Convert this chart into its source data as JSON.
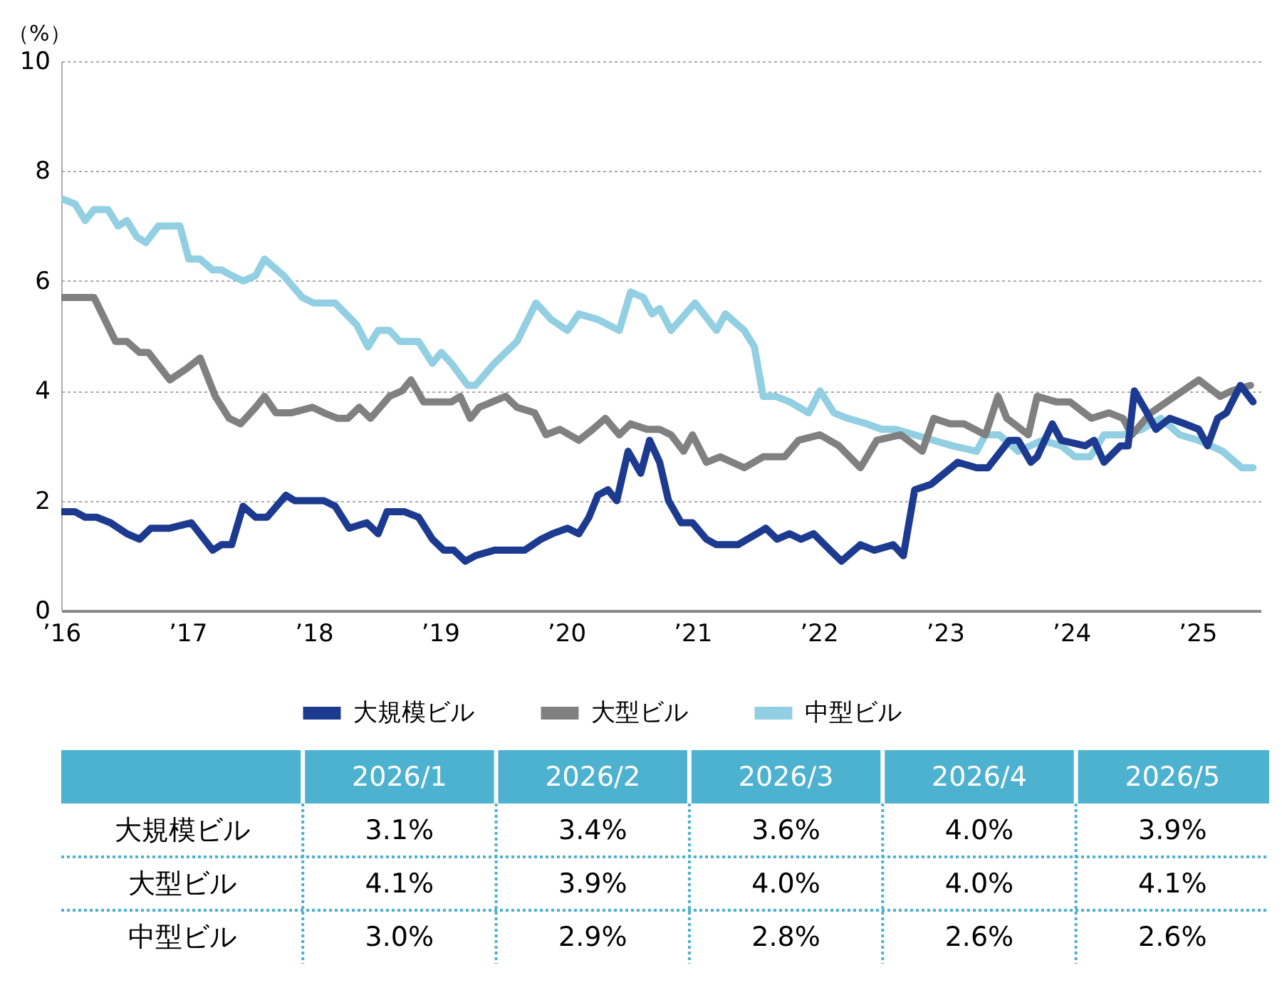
{
  "chart_data": [
    {
      "type": "line",
      "ylabel": "（%）",
      "xlim": [
        2016,
        2025.5
      ],
      "ylim": [
        0,
        10
      ],
      "xticks": [
        {
          "value": 2016,
          "label": "’16"
        },
        {
          "value": 2017,
          "label": "’17"
        },
        {
          "value": 2018,
          "label": "’18"
        },
        {
          "value": 2019,
          "label": "’19"
        },
        {
          "value": 2020,
          "label": "’20"
        },
        {
          "value": 2021,
          "label": "’21"
        },
        {
          "value": 2022,
          "label": "’22"
        },
        {
          "value": 2023,
          "label": "’23"
        },
        {
          "value": 2024,
          "label": "’24"
        },
        {
          "value": 2025,
          "label": "’25"
        }
      ],
      "yticks": [
        0,
        2,
        4,
        6,
        8,
        10
      ],
      "grid": "y",
      "legend": "bottom",
      "line_style": "solid",
      "series": [
        {
          "name": "大規模ビル",
          "color": "#1c3a8f",
          "x": [
            2016.0,
            2016.11,
            2016.19,
            2016.28,
            2016.39,
            2016.52,
            2016.62,
            2016.71,
            2016.86,
            2017.03,
            2017.2,
            2017.27,
            2017.35,
            2017.44,
            2017.54,
            2017.63,
            2017.78,
            2017.85,
            2017.99,
            2018.08,
            2018.17,
            2018.28,
            2018.42,
            2018.51,
            2018.58,
            2018.72,
            2018.83,
            2018.94,
            2019.03,
            2019.11,
            2019.2,
            2019.28,
            2019.43,
            2019.54,
            2019.67,
            2019.8,
            2019.89,
            2020.01,
            2020.1,
            2020.18,
            2020.25,
            2020.33,
            2020.4,
            2020.49,
            2020.59,
            2020.66,
            2020.74,
            2020.81,
            2020.91,
            2021.0,
            2021.11,
            2021.19,
            2021.36,
            2021.51,
            2021.58,
            2021.67,
            2021.77,
            2021.86,
            2021.96,
            2022.09,
            2022.18,
            2022.33,
            2022.44,
            2022.59,
            2022.67,
            2022.76,
            2022.89,
            2023.1,
            2023.25,
            2023.34,
            2023.51,
            2023.58,
            2023.68,
            2023.73,
            2023.85,
            2023.92,
            2024.11,
            2024.18,
            2024.26,
            2024.39,
            2024.45,
            2024.5,
            2024.6,
            2024.67,
            2024.78,
            2024.9,
            2025.01,
            2025.08,
            2025.16,
            2025.23,
            2025.34,
            2025.44
          ],
          "values": [
            1.8,
            1.8,
            1.7,
            1.7,
            1.6,
            1.4,
            1.3,
            1.5,
            1.5,
            1.6,
            1.1,
            1.2,
            1.2,
            1.9,
            1.7,
            1.7,
            2.1,
            2.0,
            2.0,
            2.0,
            1.9,
            1.5,
            1.6,
            1.4,
            1.8,
            1.8,
            1.7,
            1.3,
            1.1,
            1.1,
            0.9,
            1.0,
            1.1,
            1.1,
            1.1,
            1.3,
            1.4,
            1.5,
            1.4,
            1.7,
            2.1,
            2.2,
            2.0,
            2.9,
            2.5,
            3.1,
            2.7,
            2.0,
            1.6,
            1.6,
            1.3,
            1.2,
            1.2,
            1.4,
            1.5,
            1.3,
            1.4,
            1.3,
            1.4,
            1.1,
            0.9,
            1.2,
            1.1,
            1.2,
            1.0,
            2.2,
            2.3,
            2.7,
            2.6,
            2.6,
            3.1,
            3.1,
            2.7,
            2.8,
            3.4,
            3.1,
            3.0,
            3.1,
            2.7,
            3.0,
            3.0,
            4.0,
            3.6,
            3.3,
            3.5,
            3.4,
            3.3,
            3.0,
            3.5,
            3.6,
            4.1,
            3.8
          ]
        },
        {
          "name": "大型ビル",
          "color": "#808080",
          "x": [
            2016.0,
            2016.11,
            2016.26,
            2016.43,
            2016.52,
            2016.62,
            2016.69,
            2016.86,
            2016.99,
            2017.1,
            2017.22,
            2017.33,
            2017.42,
            2017.54,
            2017.61,
            2017.7,
            2017.82,
            2017.99,
            2018.08,
            2018.19,
            2018.27,
            2018.36,
            2018.45,
            2018.6,
            2018.7,
            2018.77,
            2018.87,
            2018.98,
            2019.09,
            2019.16,
            2019.24,
            2019.31,
            2019.52,
            2019.61,
            2019.75,
            2019.84,
            2019.95,
            2020.1,
            2020.21,
            2020.31,
            2020.42,
            2020.51,
            2020.64,
            2020.74,
            2020.83,
            2020.93,
            2021.0,
            2021.11,
            2021.22,
            2021.41,
            2021.56,
            2021.73,
            2021.84,
            2022.01,
            2022.16,
            2022.33,
            2022.46,
            2022.65,
            2022.82,
            2022.91,
            2023.04,
            2023.15,
            2023.32,
            2023.42,
            2023.49,
            2023.66,
            2023.73,
            2023.88,
            2023.99,
            2024.16,
            2024.3,
            2024.41,
            2024.48,
            2024.63,
            2024.82,
            2025.01,
            2025.18,
            2025.27,
            2025.42
          ],
          "values": [
            5.7,
            5.7,
            5.7,
            4.9,
            4.9,
            4.7,
            4.7,
            4.2,
            4.4,
            4.6,
            3.9,
            3.5,
            3.4,
            3.7,
            3.9,
            3.6,
            3.6,
            3.7,
            3.6,
            3.5,
            3.5,
            3.7,
            3.5,
            3.9,
            4.0,
            4.2,
            3.8,
            3.8,
            3.8,
            3.9,
            3.5,
            3.7,
            3.9,
            3.7,
            3.6,
            3.2,
            3.3,
            3.1,
            3.3,
            3.5,
            3.2,
            3.4,
            3.3,
            3.3,
            3.2,
            2.9,
            3.2,
            2.7,
            2.8,
            2.6,
            2.8,
            2.8,
            3.1,
            3.2,
            3.0,
            2.6,
            3.1,
            3.2,
            2.9,
            3.5,
            3.4,
            3.4,
            3.2,
            3.9,
            3.5,
            3.2,
            3.9,
            3.8,
            3.8,
            3.5,
            3.6,
            3.5,
            3.2,
            3.6,
            3.9,
            4.2,
            3.9,
            4.0,
            4.1
          ]
        },
        {
          "name": "中型ビル",
          "color": "#92cfe2",
          "x": [
            2016.0,
            2016.11,
            2016.19,
            2016.26,
            2016.37,
            2016.45,
            2016.52,
            2016.6,
            2016.67,
            2016.77,
            2016.94,
            2017.01,
            2017.1,
            2017.2,
            2017.27,
            2017.35,
            2017.44,
            2017.54,
            2017.61,
            2017.76,
            2017.91,
            2018.0,
            2018.17,
            2018.34,
            2018.43,
            2018.51,
            2018.6,
            2018.68,
            2018.83,
            2018.94,
            2019.01,
            2019.09,
            2019.22,
            2019.28,
            2019.43,
            2019.52,
            2019.61,
            2019.76,
            2019.88,
            2020.01,
            2020.1,
            2020.25,
            2020.42,
            2020.51,
            2020.61,
            2020.68,
            2020.74,
            2020.83,
            2021.02,
            2021.19,
            2021.26,
            2021.41,
            2021.49,
            2021.56,
            2021.66,
            2021.77,
            2021.92,
            2022.01,
            2022.12,
            2022.23,
            2022.38,
            2022.5,
            2022.61,
            2022.76,
            2022.91,
            2023.06,
            2023.25,
            2023.32,
            2023.43,
            2023.58,
            2023.77,
            2023.92,
            2024.03,
            2024.15,
            2024.26,
            2024.41,
            2024.56,
            2024.71,
            2024.86,
            2025.01,
            2025.2,
            2025.35,
            2025.44
          ],
          "values": [
            7.5,
            7.4,
            7.1,
            7.3,
            7.3,
            7.0,
            7.1,
            6.8,
            6.7,
            7.0,
            7.0,
            6.4,
            6.4,
            6.2,
            6.2,
            6.1,
            6.0,
            6.1,
            6.4,
            6.1,
            5.7,
            5.6,
            5.6,
            5.2,
            4.8,
            5.1,
            5.1,
            4.9,
            4.9,
            4.5,
            4.7,
            4.5,
            4.1,
            4.1,
            4.5,
            4.7,
            4.9,
            5.6,
            5.3,
            5.1,
            5.4,
            5.3,
            5.1,
            5.8,
            5.7,
            5.4,
            5.5,
            5.1,
            5.6,
            5.1,
            5.4,
            5.1,
            4.8,
            3.9,
            3.9,
            3.8,
            3.6,
            4.0,
            3.6,
            3.5,
            3.4,
            3.3,
            3.3,
            3.2,
            3.1,
            3.0,
            2.9,
            3.2,
            3.2,
            2.9,
            3.1,
            3.0,
            2.8,
            2.8,
            3.2,
            3.2,
            3.3,
            3.5,
            3.2,
            3.1,
            2.9,
            2.6,
            2.6
          ]
        }
      ]
    },
    {
      "type": "heatmap",
      "categories": [
        "2026/1",
        "2026/2",
        "2026/3",
        "2026/4",
        "2026/5"
      ],
      "y_categories": [
        "大規模ビル",
        "大型ビル",
        "中型ビル"
      ],
      "cells": [
        [
          3.1,
          3.4,
          3.6,
          4.0,
          3.9
        ],
        [
          4.1,
          3.9,
          4.0,
          4.0,
          4.1
        ],
        [
          3.0,
          2.9,
          2.8,
          2.6,
          2.6
        ]
      ],
      "cell_labels": [
        [
          "3.1%",
          "3.4%",
          "3.6%",
          "4.0%",
          "3.9%"
        ],
        [
          "4.1%",
          "3.9%",
          "4.0%",
          "4.0%",
          "4.1%"
        ],
        [
          "3.0%",
          "2.9%",
          "2.8%",
          "2.6%",
          "2.6%"
        ]
      ]
    }
  ]
}
